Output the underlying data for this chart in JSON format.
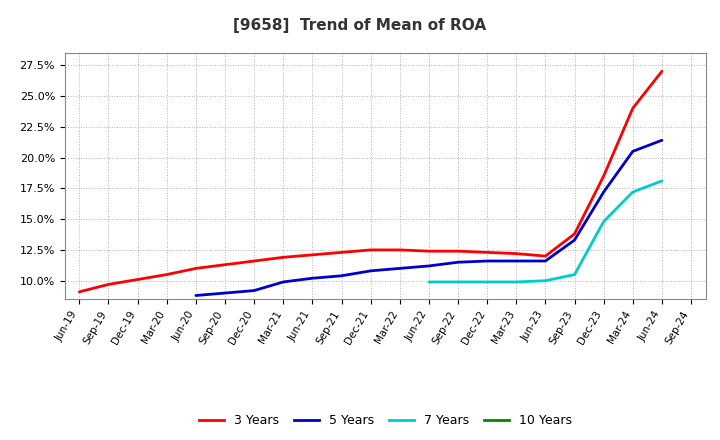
{
  "title": "[9658]  Trend of Mean of ROA",
  "title_fontsize": 11,
  "title_fontweight": "bold",
  "background_color": "#ffffff",
  "plot_bg_color": "#ffffff",
  "grid_color": "#aaaaaa",
  "ylim": [
    0.085,
    0.285
  ],
  "yticks": [
    0.1,
    0.125,
    0.15,
    0.175,
    0.2,
    0.225,
    0.25,
    0.275
  ],
  "x_labels": [
    "Jun-19",
    "Sep-19",
    "Dec-19",
    "Mar-20",
    "Jun-20",
    "Sep-20",
    "Dec-20",
    "Mar-21",
    "Jun-21",
    "Sep-21",
    "Dec-21",
    "Mar-22",
    "Jun-22",
    "Sep-22",
    "Dec-22",
    "Mar-23",
    "Jun-23",
    "Sep-23",
    "Dec-23",
    "Mar-24",
    "Jun-24",
    "Sep-24"
  ],
  "series_order": [
    "3 Years",
    "5 Years",
    "7 Years",
    "10 Years"
  ],
  "series": {
    "3 Years": {
      "color": "#ff0000",
      "linewidth": 2.0,
      "values": [
        0.091,
        0.097,
        0.101,
        0.105,
        0.11,
        0.113,
        0.116,
        0.119,
        0.121,
        0.123,
        0.125,
        0.125,
        0.124,
        0.124,
        0.123,
        0.122,
        0.12,
        0.138,
        0.185,
        0.24,
        0.27,
        null
      ]
    },
    "5 Years": {
      "color": "#0000cc",
      "linewidth": 2.0,
      "values": [
        null,
        null,
        null,
        null,
        0.088,
        0.09,
        0.092,
        0.099,
        0.102,
        0.104,
        0.108,
        0.11,
        0.112,
        0.115,
        0.116,
        0.116,
        0.116,
        0.133,
        0.172,
        0.205,
        0.214,
        null
      ]
    },
    "7 Years": {
      "color": "#00cccc",
      "linewidth": 2.0,
      "values": [
        null,
        null,
        null,
        null,
        null,
        null,
        null,
        null,
        null,
        null,
        null,
        null,
        0.099,
        0.099,
        0.099,
        0.099,
        0.1,
        0.105,
        0.148,
        0.172,
        0.181,
        null
      ]
    },
    "10 Years": {
      "color": "#008800",
      "linewidth": 2.0,
      "values": [
        null,
        null,
        null,
        null,
        null,
        null,
        null,
        null,
        null,
        null,
        null,
        null,
        null,
        null,
        null,
        null,
        null,
        null,
        null,
        null,
        null,
        null
      ]
    }
  },
  "legend_labels": [
    "3 Years",
    "5 Years",
    "7 Years",
    "10 Years"
  ],
  "legend_colors": [
    "#ff0000",
    "#0000cc",
    "#00cccc",
    "#008800"
  ]
}
